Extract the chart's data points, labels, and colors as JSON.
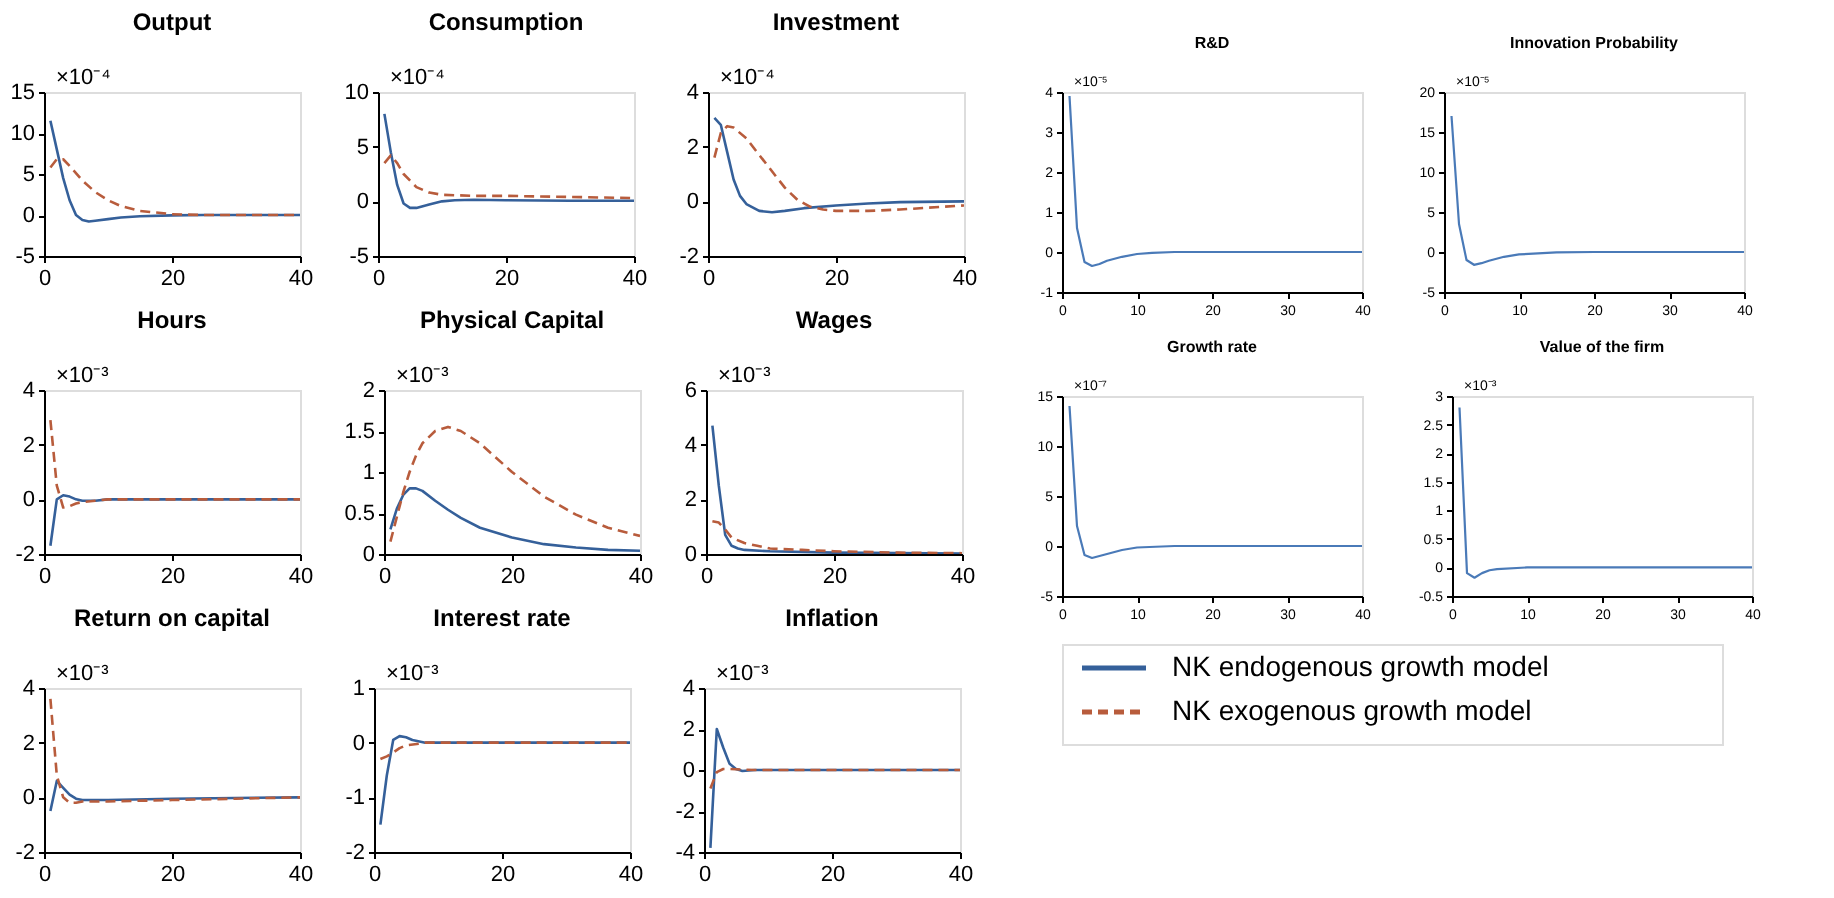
{
  "chart_data": [
    {
      "type": "line",
      "title": "Output",
      "annotations": [
        "×10⁻⁴"
      ],
      "xlim": [
        0,
        40
      ],
      "xticks": [
        0,
        20,
        40
      ],
      "ylim": [
        -5,
        15
      ],
      "yticks": [
        -5,
        0,
        5,
        10,
        15
      ],
      "legend": "bottom right",
      "series": [
        {
          "name": "NK endogenous growth model",
          "color": "#35609a",
          "x": [
            1,
            2,
            3,
            4,
            5,
            6,
            7,
            8,
            10,
            12,
            15,
            20,
            25,
            40
          ],
          "values": [
            11.5,
            8,
            4.5,
            1.8,
            0,
            -0.6,
            -0.8,
            -0.7,
            -0.5,
            -0.3,
            -0.15,
            -0.05,
            0,
            0
          ]
        },
        {
          "name": "NK exogenous growth model",
          "color": "#b85c3c",
          "line_style": "dashed",
          "x": [
            1,
            2,
            3,
            4,
            6,
            8,
            10,
            12,
            15,
            20,
            25,
            40
          ],
          "values": [
            5.8,
            6.8,
            6.8,
            6,
            4.2,
            2.8,
            1.8,
            1.1,
            0.5,
            0.1,
            0,
            0
          ]
        }
      ]
    },
    {
      "type": "line",
      "title": "Consumption",
      "annotations": [
        "×10⁻⁴"
      ],
      "xlim": [
        0,
        40
      ],
      "xticks": [
        0,
        20,
        40
      ],
      "ylim": [
        -5,
        10
      ],
      "yticks": [
        -5,
        0,
        5,
        10
      ],
      "series": [
        {
          "color": "#35609a",
          "x": [
            1,
            2,
            3,
            4,
            5,
            6,
            8,
            10,
            12,
            15,
            20,
            30,
            40
          ],
          "values": [
            8,
            4.5,
            1.5,
            -0.2,
            -0.6,
            -0.6,
            -0.3,
            0,
            0.1,
            0.15,
            0.1,
            0.05,
            0.05
          ]
        },
        {
          "color": "#b85c3c",
          "line_style": "dashed",
          "x": [
            1,
            2,
            3,
            4,
            6,
            8,
            10,
            15,
            20,
            30,
            40
          ],
          "values": [
            3.5,
            4.2,
            3.5,
            2.5,
            1.3,
            0.8,
            0.6,
            0.5,
            0.5,
            0.4,
            0.3
          ]
        }
      ]
    },
    {
      "type": "line",
      "title": "Investment",
      "annotations": [
        "×10⁻⁴"
      ],
      "xlim": [
        0,
        40
      ],
      "xticks": [
        0,
        20,
        40
      ],
      "ylim": [
        -2,
        4
      ],
      "yticks": [
        -2,
        0,
        2,
        4
      ],
      "series": [
        {
          "color": "#35609a",
          "x": [
            1,
            2,
            3,
            4,
            5,
            6,
            8,
            10,
            12,
            15,
            20,
            25,
            30,
            40
          ],
          "values": [
            3.05,
            2.8,
            1.8,
            0.8,
            0.2,
            -0.1,
            -0.35,
            -0.4,
            -0.35,
            -0.25,
            -0.15,
            -0.08,
            -0.03,
            0
          ]
        },
        {
          "color": "#b85c3c",
          "line_style": "dashed",
          "x": [
            1,
            2,
            3,
            4,
            6,
            8,
            10,
            12,
            14,
            16,
            18,
            20,
            25,
            30,
            40
          ],
          "values": [
            1.6,
            2.5,
            2.75,
            2.7,
            2.3,
            1.7,
            1.1,
            0.5,
            0.05,
            -0.2,
            -0.3,
            -0.35,
            -0.35,
            -0.3,
            -0.15
          ]
        }
      ]
    },
    {
      "type": "line",
      "title": "Hours",
      "annotations": [
        "×10⁻³"
      ],
      "xlim": [
        0,
        40
      ],
      "xticks": [
        0,
        20,
        40
      ],
      "ylim": [
        -2,
        4
      ],
      "yticks": [
        -2,
        0,
        2,
        4
      ],
      "series": [
        {
          "color": "#35609a",
          "x": [
            1,
            2,
            3,
            4,
            5,
            6,
            8,
            10,
            40
          ],
          "values": [
            -1.7,
            0,
            0.15,
            0.1,
            0,
            -0.05,
            -0.05,
            0,
            0
          ]
        },
        {
          "color": "#b85c3c",
          "line_style": "dashed",
          "x": [
            1,
            2,
            3,
            4,
            5,
            6,
            8,
            10,
            40
          ],
          "values": [
            2.9,
            0.5,
            -0.3,
            -0.25,
            -0.15,
            -0.1,
            -0.05,
            0,
            0
          ]
        }
      ]
    },
    {
      "type": "line",
      "title": "Physical Capital",
      "annotations": [
        "×10⁻³"
      ],
      "xlim": [
        0,
        40
      ],
      "xticks": [
        0,
        20,
        40
      ],
      "ylim": [
        0,
        2
      ],
      "yticks": [
        0,
        0.5,
        1,
        1.5,
        2
      ],
      "series": [
        {
          "color": "#35609a",
          "x": [
            1,
            2,
            3,
            4,
            5,
            6,
            8,
            10,
            12,
            15,
            20,
            25,
            30,
            35,
            40
          ],
          "values": [
            0.3,
            0.55,
            0.72,
            0.8,
            0.8,
            0.77,
            0.65,
            0.54,
            0.44,
            0.32,
            0.2,
            0.12,
            0.08,
            0.05,
            0.04
          ]
        },
        {
          "color": "#b85c3c",
          "line_style": "dashed",
          "x": [
            1,
            2,
            3,
            4,
            5,
            6,
            8,
            10,
            12,
            15,
            20,
            25,
            30,
            35,
            40
          ],
          "values": [
            0.15,
            0.45,
            0.75,
            1.0,
            1.2,
            1.35,
            1.5,
            1.55,
            1.5,
            1.35,
            1.0,
            0.7,
            0.48,
            0.32,
            0.22
          ]
        }
      ]
    },
    {
      "type": "line",
      "title": "Wages",
      "annotations": [
        "×10⁻³"
      ],
      "xlim": [
        0,
        40
      ],
      "xticks": [
        0,
        20,
        40
      ],
      "ylim": [
        0,
        6
      ],
      "yticks": [
        0,
        2,
        4,
        6
      ],
      "series": [
        {
          "color": "#35609a",
          "x": [
            1,
            2,
            3,
            4,
            5,
            6,
            10,
            20,
            40
          ],
          "values": [
            4.7,
            2.5,
            0.7,
            0.3,
            0.2,
            0.15,
            0.1,
            0.05,
            0.02
          ]
        },
        {
          "color": "#b85c3c",
          "line_style": "dashed",
          "x": [
            1,
            2,
            3,
            4,
            6,
            8,
            10,
            15,
            20,
            30,
            40
          ],
          "values": [
            1.2,
            1.15,
            0.9,
            0.6,
            0.4,
            0.3,
            0.2,
            0.15,
            0.1,
            0.05,
            0.03
          ]
        }
      ]
    },
    {
      "type": "line",
      "title": "Return on capital",
      "annotations": [
        "×10⁻³"
      ],
      "xlim": [
        0,
        40
      ],
      "xticks": [
        0,
        20,
        40
      ],
      "ylim": [
        -2,
        4
      ],
      "yticks": [
        -2,
        0,
        2,
        4
      ],
      "series": [
        {
          "color": "#35609a",
          "x": [
            1,
            2,
            3,
            4,
            5,
            6,
            10,
            20,
            40
          ],
          "values": [
            -0.5,
            0.6,
            0.35,
            0.1,
            -0.05,
            -0.1,
            -0.1,
            -0.05,
            0
          ]
        },
        {
          "color": "#b85c3c",
          "line_style": "dashed",
          "x": [
            1,
            2,
            3,
            4,
            5,
            6,
            10,
            20,
            30,
            40
          ],
          "values": [
            3.6,
            0.8,
            0,
            -0.2,
            -0.2,
            -0.15,
            -0.15,
            -0.1,
            -0.05,
            0
          ]
        }
      ]
    },
    {
      "type": "line",
      "title": "Interest rate",
      "annotations": [
        "×10⁻³"
      ],
      "xlim": [
        0,
        40
      ],
      "xticks": [
        0,
        20,
        40
      ],
      "ylim": [
        -2,
        1
      ],
      "yticks": [
        -2,
        -1,
        0,
        1
      ],
      "series": [
        {
          "color": "#35609a",
          "x": [
            1,
            2,
            3,
            4,
            5,
            6,
            8,
            40
          ],
          "values": [
            -1.5,
            -0.6,
            0.05,
            0.12,
            0.1,
            0.05,
            0,
            0
          ]
        },
        {
          "color": "#b85c3c",
          "line_style": "dashed",
          "x": [
            1,
            2,
            3,
            4,
            5,
            7,
            8,
            40
          ],
          "values": [
            -0.3,
            -0.25,
            -0.18,
            -0.1,
            -0.05,
            -0.02,
            0,
            0
          ]
        }
      ]
    },
    {
      "type": "line",
      "title": "Inflation",
      "annotations": [
        "×10⁻³"
      ],
      "xlim": [
        0,
        40
      ],
      "xticks": [
        0,
        20,
        40
      ],
      "ylim": [
        -4,
        4
      ],
      "yticks": [
        -4,
        -2,
        0,
        2,
        4
      ],
      "series": [
        {
          "color": "#35609a",
          "x": [
            1,
            2,
            3,
            4,
            5,
            6,
            8,
            40
          ],
          "values": [
            -3.8,
            2.0,
            1.1,
            0.3,
            0.05,
            -0.05,
            0,
            0
          ]
        },
        {
          "color": "#b85c3c",
          "line_style": "dashed",
          "x": [
            1,
            2,
            3,
            4,
            6,
            8,
            40
          ],
          "values": [
            -0.9,
            -0.1,
            0.05,
            0.05,
            0.02,
            0,
            0
          ]
        }
      ]
    },
    {
      "type": "line",
      "title": "R&D",
      "annotations": [
        "×10⁻⁵"
      ],
      "xlim": [
        0,
        40
      ],
      "xticks": [
        0,
        10,
        20,
        30,
        40
      ],
      "ylim": [
        -1,
        4
      ],
      "yticks": [
        -1,
        0,
        1,
        2,
        3,
        4
      ],
      "series": [
        {
          "color": "#4a7ab8",
          "x": [
            1,
            2,
            3,
            4,
            5,
            6,
            8,
            10,
            12,
            15,
            40
          ],
          "values": [
            3.9,
            0.6,
            -0.25,
            -0.35,
            -0.3,
            -0.22,
            -0.12,
            -0.05,
            -0.02,
            0,
            0
          ]
        }
      ]
    },
    {
      "type": "line",
      "title": "Innovation Probability",
      "annotations": [
        "×10⁻⁵"
      ],
      "xlim": [
        0,
        40
      ],
      "xticks": [
        0,
        10,
        20,
        30,
        40
      ],
      "ylim": [
        -5,
        20
      ],
      "yticks": [
        -5,
        0,
        5,
        10,
        15,
        20
      ],
      "series": [
        {
          "color": "#4a7ab8",
          "x": [
            1,
            2,
            3,
            4,
            5,
            6,
            8,
            10,
            15,
            20,
            40
          ],
          "values": [
            17,
            3.5,
            -1,
            -1.6,
            -1.4,
            -1.1,
            -0.6,
            -0.3,
            -0.05,
            0,
            0
          ]
        }
      ]
    },
    {
      "type": "line",
      "title": "Growth rate",
      "annotations": [
        "×10⁻⁷"
      ],
      "xlim": [
        0,
        40
      ],
      "xticks": [
        0,
        10,
        20,
        30,
        40
      ],
      "ylim": [
        -5,
        15
      ],
      "yticks": [
        -5,
        0,
        5,
        10,
        15
      ],
      "series": [
        {
          "color": "#4a7ab8",
          "x": [
            1,
            2,
            3,
            4,
            5,
            6,
            8,
            10,
            15,
            40
          ],
          "values": [
            14,
            2,
            -0.9,
            -1.2,
            -1.0,
            -0.8,
            -0.4,
            -0.15,
            0,
            0
          ]
        }
      ]
    },
    {
      "type": "line",
      "title": "Value of the firm",
      "annotations": [
        "×10⁻³"
      ],
      "xlim": [
        0,
        40
      ],
      "xticks": [
        0,
        10,
        20,
        30,
        40
      ],
      "ylim": [
        -0.5,
        3
      ],
      "yticks": [
        -0.5,
        0,
        0.5,
        1,
        1.5,
        2,
        2.5,
        3
      ],
      "series": [
        {
          "color": "#4a7ab8",
          "x": [
            1,
            2,
            3,
            4,
            5,
            6,
            10,
            40
          ],
          "values": [
            2.8,
            -0.1,
            -0.18,
            -0.1,
            -0.05,
            -0.03,
            0,
            0
          ]
        }
      ]
    }
  ]
}
